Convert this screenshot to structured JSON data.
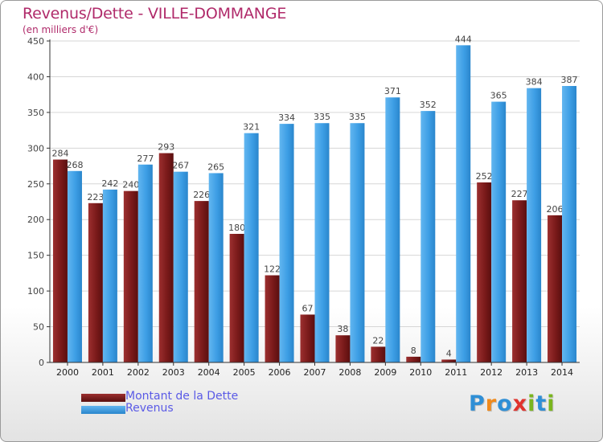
{
  "header": {
    "title": "Revenus/Dette - VILLE-DOMMANGE",
    "subtitle": "(en milliers d'€)"
  },
  "logo": {
    "text": "Proxiti",
    "letters": [
      {
        "char": "P",
        "color": "#2f8fd6"
      },
      {
        "char": "r",
        "color": "#f08a1c"
      },
      {
        "char": "o",
        "color": "#2f8fd6"
      },
      {
        "char": "x",
        "color": "#e0332d"
      },
      {
        "char": "i",
        "color": "#7ab51d"
      },
      {
        "char": "t",
        "color": "#2f8fd6"
      },
      {
        "char": "i",
        "color": "#7ab51d"
      }
    ]
  },
  "colors": {
    "dette": "#7a1a1a",
    "revenus": "#3d9ee5",
    "grid": "#d6d6d6",
    "axis": "#333333",
    "label": "#444444"
  },
  "chart_data": {
    "type": "bar",
    "title": "Revenus/Dette - VILLE-DOMMANGE",
    "subtitle": "(en milliers d'€)",
    "categories": [
      "2000",
      "2001",
      "2002",
      "2003",
      "2004",
      "2005",
      "2006",
      "2007",
      "2008",
      "2009",
      "2010",
      "2011",
      "2012",
      "2013",
      "2014"
    ],
    "series": [
      {
        "name": "Montant de la Dette",
        "values": [
          284,
          223,
          240,
          293,
          226,
          180,
          122,
          67,
          38,
          22,
          8,
          4,
          252,
          227,
          206
        ]
      },
      {
        "name": "Revenus",
        "values": [
          268,
          242,
          277,
          267,
          265,
          321,
          334,
          335,
          335,
          371,
          352,
          444,
          365,
          384,
          387
        ]
      }
    ],
    "ylim": [
      0,
      450
    ],
    "yticks": [
      0,
      50,
      100,
      150,
      200,
      250,
      300,
      350,
      400,
      450
    ],
    "grid": true,
    "legend_position": "bottom-left"
  }
}
